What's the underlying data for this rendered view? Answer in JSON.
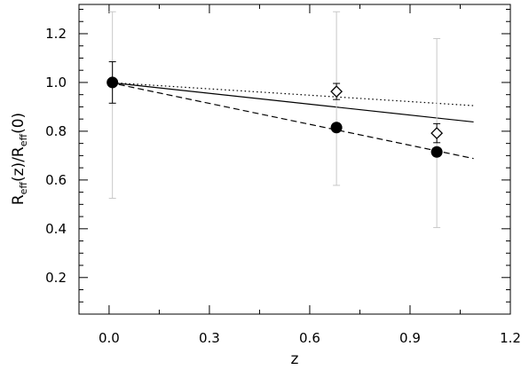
{
  "chart_data": {
    "type": "scatter",
    "xlabel": "z",
    "ylabel": {
      "base1": "R",
      "sub1": "eff",
      "mid": "(z)/R",
      "sub2": "eff",
      "end": "(0)"
    },
    "xlim": [
      -0.09,
      1.2
    ],
    "ylim": [
      0.05,
      1.32
    ],
    "xticks": [
      0.0,
      0.3,
      0.6,
      0.9,
      1.2
    ],
    "xtick_labels": [
      "0.0",
      "0.3",
      "0.6",
      "0.9",
      "1.2"
    ],
    "yticks": [
      0.2,
      0.4,
      0.6,
      0.8,
      1.0,
      1.2
    ],
    "ytick_labels": [
      "0.2",
      "0.4",
      "0.6",
      "0.8",
      "1.0",
      "1.2"
    ],
    "grid": false,
    "legend": null,
    "lines": [
      {
        "style": "solid",
        "x": [
          0.0,
          1.09
        ],
        "y": [
          1.0,
          0.838
        ]
      },
      {
        "style": "dashed",
        "x": [
          0.0,
          1.09
        ],
        "y": [
          1.0,
          0.688
        ]
      },
      {
        "style": "dotted",
        "x": [
          0.0,
          1.09
        ],
        "y": [
          1.0,
          0.905
        ]
      }
    ],
    "points": [
      {
        "marker": "filled-circle",
        "x": 0.01,
        "y": 1.0,
        "err_gray": [
          0.525,
          1.29
        ],
        "err_black": [
          0.915,
          1.085
        ]
      },
      {
        "marker": "filled-circle",
        "x": 0.68,
        "y": 0.815,
        "err_gray": [
          0.578,
          1.29
        ],
        "err_black": null
      },
      {
        "marker": "filled-circle",
        "x": 0.98,
        "y": 0.715,
        "err_gray": [
          0.405,
          1.18
        ],
        "err_black": null
      },
      {
        "marker": "open-diamond",
        "x": 0.68,
        "y": 0.963,
        "err_gray": null,
        "err_black": [
          0.93,
          0.996
        ]
      },
      {
        "marker": "open-diamond",
        "x": 0.98,
        "y": 0.792,
        "err_gray": null,
        "err_black": [
          0.753,
          0.831
        ]
      }
    ],
    "colors": {
      "line": "#000000",
      "errorbar_gray": "#c8c8c8",
      "errorbar_black": "#000000",
      "marker_fill": "#000000",
      "background": "#ffffff"
    }
  }
}
